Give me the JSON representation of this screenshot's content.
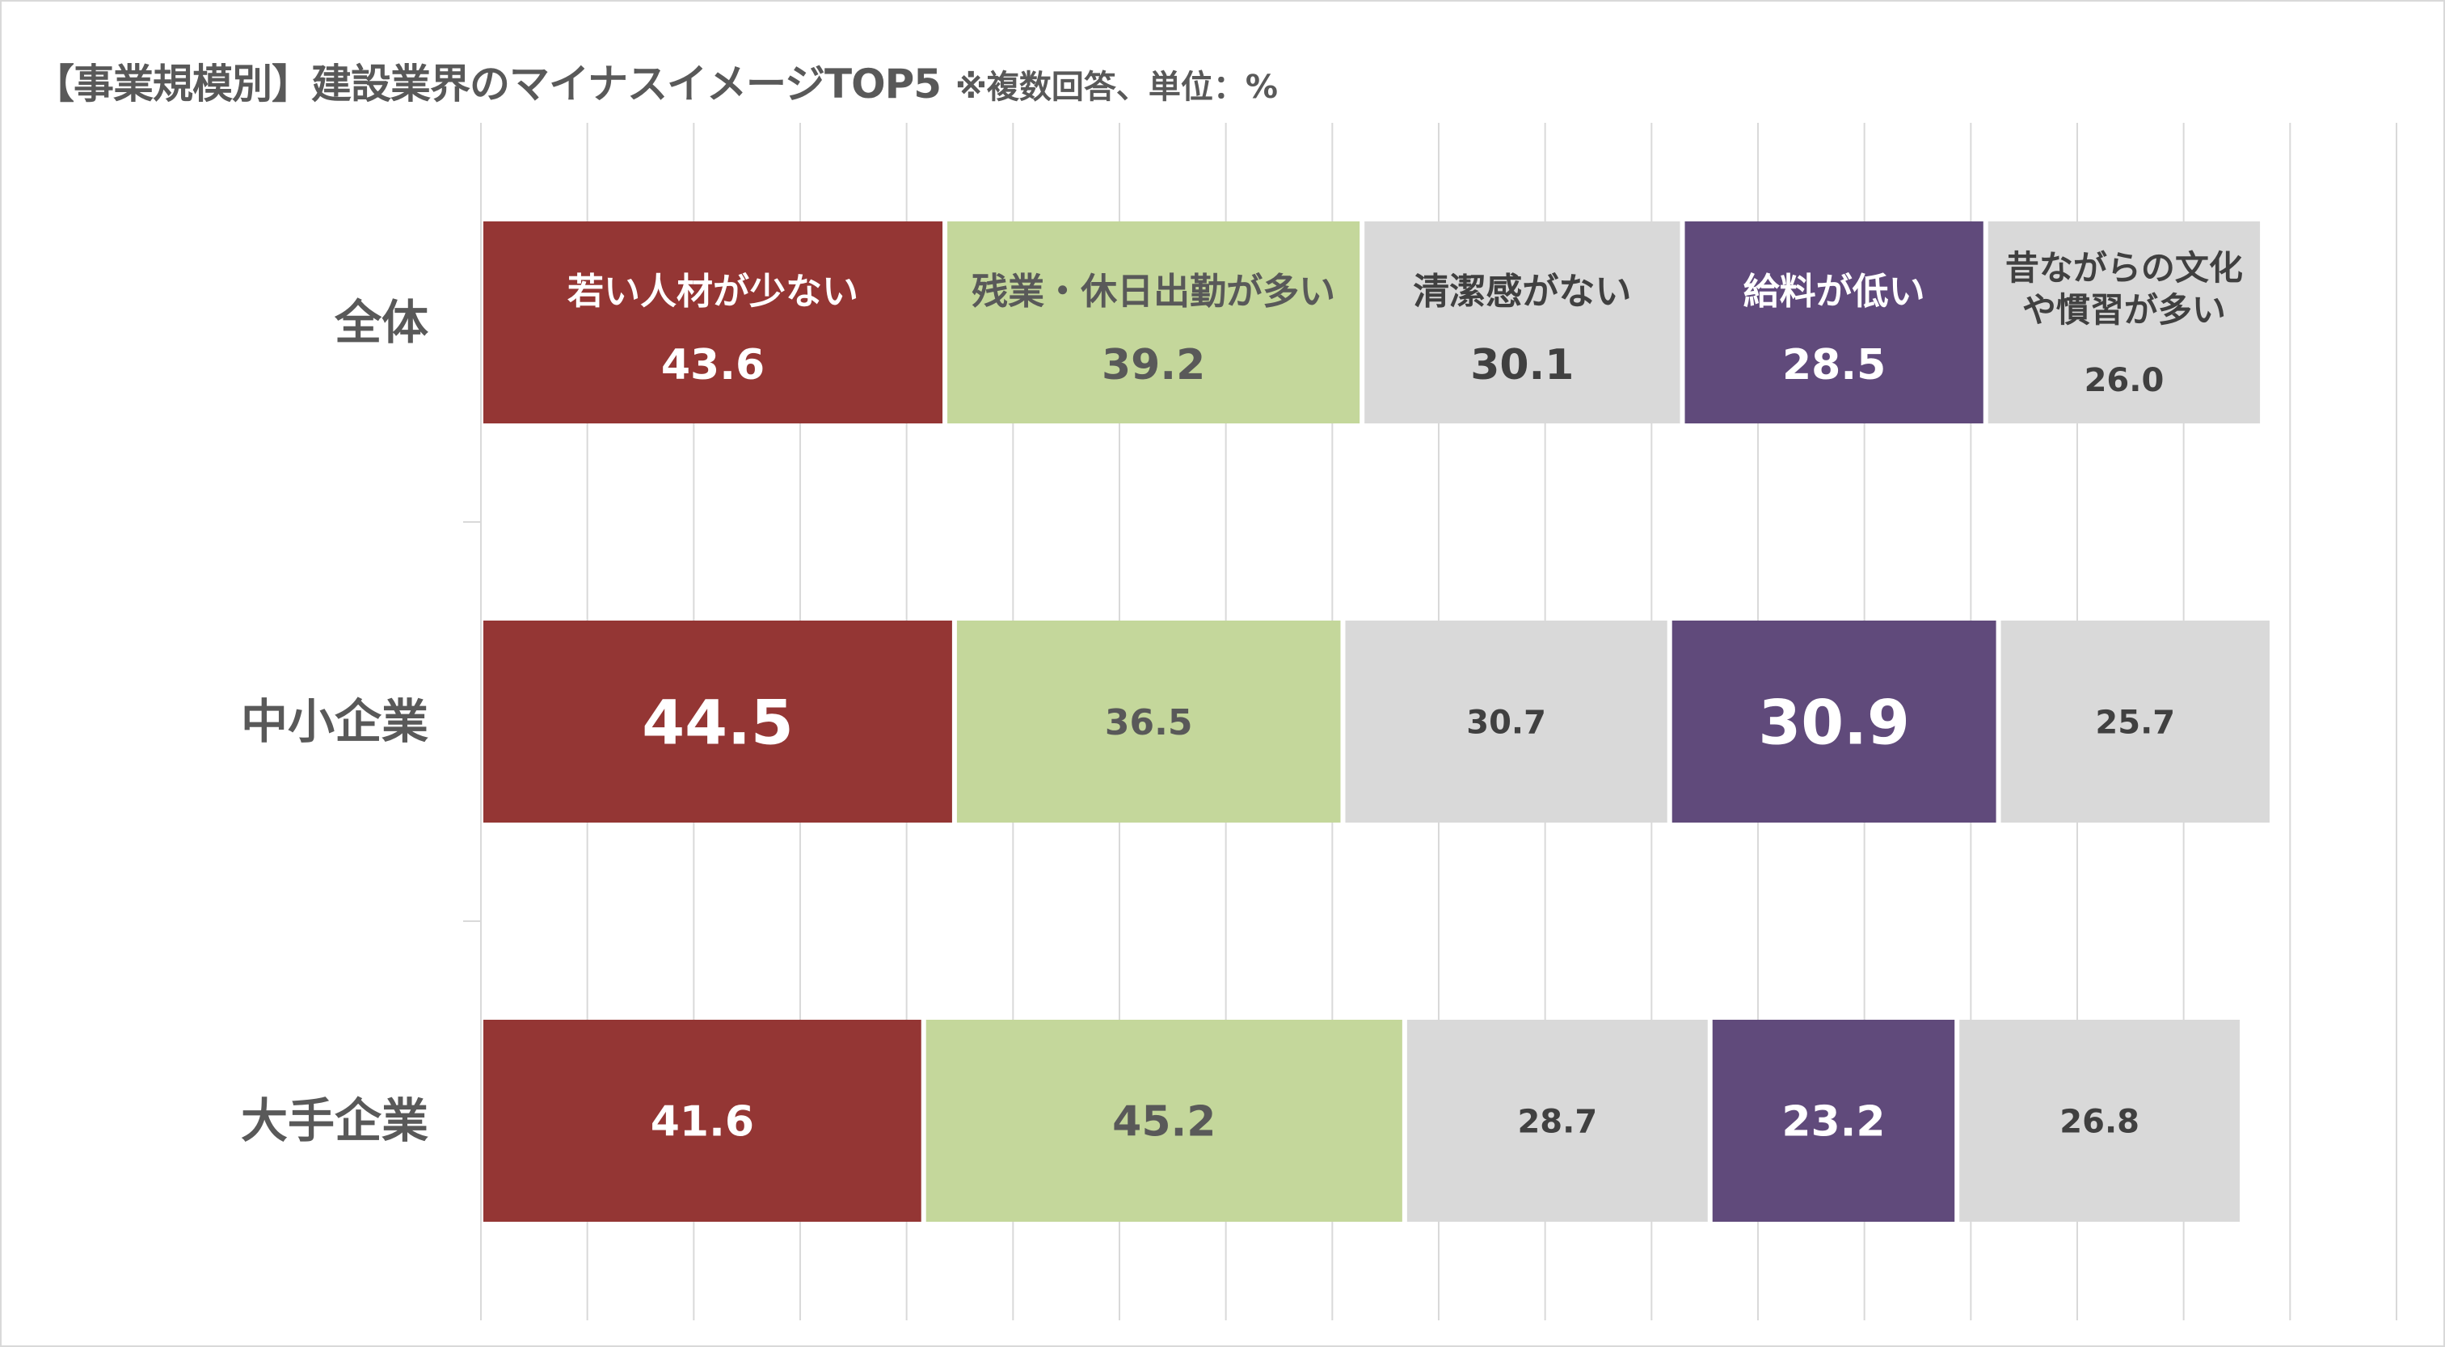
{
  "title": "【事業規模別】建設業界のマイナスイメージTOP5",
  "title_note": "※複数回答、単位：%",
  "chart_data": {
    "type": "bar",
    "orientation": "horizontal-stacked",
    "title": "【事業規模別】建設業界のマイナスイメージTOP5",
    "subtitle": "※複数回答、単位：%",
    "categories": [
      "全体",
      "中小企業",
      "大手企業"
    ],
    "series": [
      {
        "name": "若い人材が少ない",
        "values": [
          43.6,
          44.5,
          41.6
        ],
        "color": "#943634",
        "text_color": "#ffffff"
      },
      {
        "name": "残業・休日出勤が多い",
        "values": [
          39.2,
          36.5,
          45.2
        ],
        "color": "#c4d79b",
        "text_color": "#595959"
      },
      {
        "name": "清潔感がない",
        "values": [
          30.1,
          30.7,
          28.7
        ],
        "color": "#d9d9d9",
        "text_color": "#404040"
      },
      {
        "name": "給料が低い",
        "values": [
          28.5,
          30.9,
          23.2
        ],
        "color": "#604a7b",
        "text_color": "#ffffff"
      },
      {
        "name": "昔ながらの文化や慣習が多い",
        "values": [
          26.0,
          25.7,
          26.8
        ],
        "color": "#d9d9d9",
        "text_color": "#404040"
      }
    ],
    "segment_name_lines": [
      [
        "若い人材が少ない"
      ],
      [
        "残業・休日出勤が多い"
      ],
      [
        "清潔感がない"
      ],
      [
        "給料が低い"
      ],
      [
        "昔ながらの文化",
        "や慣習が多い"
      ]
    ],
    "value_labels": [
      [
        "43.6",
        "39.2",
        "30.1",
        "28.5",
        "26.0"
      ],
      [
        "44.5",
        "36.5",
        "30.7",
        "30.9",
        "25.7"
      ],
      [
        "41.6",
        "45.2",
        "28.7",
        "23.2",
        "26.8"
      ]
    ],
    "xlim": [
      0,
      180
    ],
    "grid": true,
    "legend": "none"
  }
}
